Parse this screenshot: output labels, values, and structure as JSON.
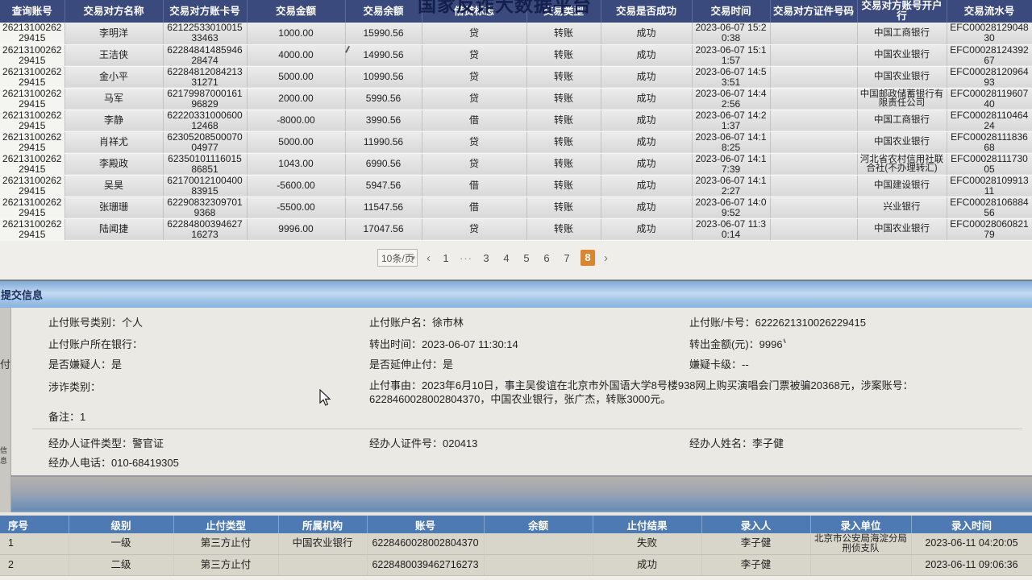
{
  "platform_title": "国家反诈大数据平台",
  "transactions_table": {
    "columns": [
      "查询账号",
      "交易对方名称",
      "交易对方账卡号",
      "交易金额",
      "交易余额",
      "借贷标志",
      "交易类型",
      "交易是否成功",
      "交易时间",
      "交易对方证件号码",
      "交易对方账号开户行",
      "交易流水号"
    ],
    "rows": [
      [
        "2621310026229415",
        "李明洋",
        "6212253301001533463",
        "1000.00",
        "15990.56",
        "贷",
        "转账",
        "成功",
        "2023-06-07 15:20:38",
        "",
        "中国工商银行",
        "EFC0002812904830"
      ],
      [
        "2621310026229415",
        "王洁侠",
        "6228484148594628474",
        "4000.00",
        "14990.56",
        "贷",
        "转账",
        "成功",
        "2023-06-07 15:11:57",
        "",
        "中国农业银行",
        "EFC0002812439267"
      ],
      [
        "2621310026229415",
        "金小平",
        "6228481208421331271",
        "5000.00",
        "10990.56",
        "贷",
        "转账",
        "成功",
        "2023-06-07 14:53:51",
        "",
        "中国农业银行",
        "EFC0002812096493"
      ],
      [
        "2621310026229415",
        "马军",
        "6217998700016196829",
        "2000.00",
        "5990.56",
        "贷",
        "转账",
        "成功",
        "2023-06-07 14:42:56",
        "",
        "中国邮政储蓄银行有限责任公司",
        "EFC0002811960740"
      ],
      [
        "2621310026229415",
        "李静",
        "6222033100060012468",
        "-8000.00",
        "3990.56",
        "借",
        "转账",
        "成功",
        "2023-06-07 14:21:37",
        "",
        "中国工商银行",
        "EFC0002811046424"
      ],
      [
        "2621310026229415",
        "肖祥尤",
        "6230520850007004977",
        "5000.00",
        "11990.56",
        "贷",
        "转账",
        "成功",
        "2023-06-07 14:18:25",
        "",
        "中国农业银行",
        "EFC0002811183668"
      ],
      [
        "2621310026229415",
        "李殿政",
        "6235010111601586851",
        "1043.00",
        "6990.56",
        "贷",
        "转账",
        "成功",
        "2023-06-07 14:17:39",
        "",
        "河北省农村信用社联合社(不办理转汇)",
        "EFC0002811173005"
      ],
      [
        "2621310026229415",
        "吴昊",
        "6217001210040083915",
        "-5600.00",
        "5947.56",
        "借",
        "转账",
        "成功",
        "2023-06-07 14:12:27",
        "",
        "中国建设银行",
        "EFC0002810991311"
      ],
      [
        "2621310026229415",
        "张珊珊",
        "622908323097019368",
        "-5500.00",
        "11547.56",
        "借",
        "转账",
        "成功",
        "2023-06-07 14:09:52",
        "",
        "兴业银行",
        "EFC0002810688456"
      ],
      [
        "2621310026229415",
        "陆闻捷",
        "6228480039462716273",
        "9996.00",
        "17047.56",
        "贷",
        "转账",
        "成功",
        "2023-06-07 11:30:14",
        "",
        "中国农业银行",
        "EFC0002806082179"
      ]
    ]
  },
  "pagination": {
    "page_size": "10条/页",
    "prev": "‹",
    "next": "›",
    "pages": [
      "1",
      "···",
      "3",
      "4",
      "5",
      "6",
      "7",
      "8"
    ],
    "current": "8"
  },
  "submit_info": {
    "header": "提交信息",
    "rows": [
      [
        "止付账号类别：个人",
        "止付账户名：徐市林",
        "止付账/卡号：6222621310026229415"
      ],
      [
        "止付账户所在银行：",
        "转出时间：2023-06-07 11:30:14",
        "转出金额(元)：9996"
      ],
      [
        "是否嫌疑人：是",
        "是否延伸止付：是",
        "嫌疑卡级：--"
      ],
      [
        "涉诈类别：",
        "止付事由：2023年6月10日，事主吴俊谊在北京市外国语大学8号楼938网上购买演唱会门票被骗20368元，涉案账号：6228460028002804370，中国农业银行，张广杰，转账3000元。",
        ""
      ],
      [
        "备注：1",
        "",
        ""
      ]
    ],
    "operator_rows": [
      [
        "经办人证件类型：警官证",
        "经办人证件号：020413",
        "经办人姓名：李子健"
      ],
      [
        "经办人电话：010-68419305",
        "",
        ""
      ]
    ]
  },
  "sidebar_clipped_labels": [
    "付",
    "信息"
  ],
  "stop_payment_table": {
    "columns": [
      "序号",
      "级别",
      "止付类型",
      "所属机构",
      "账号",
      "余额",
      "止付结果",
      "录入人",
      "录入单位",
      "录入时间"
    ],
    "rows": [
      [
        "1",
        "一级",
        "第三方止付",
        "中国农业银行",
        "6228460028002804370",
        "",
        "失败",
        "李子健",
        "北京市公安局海淀分局刑侦支队",
        "2023-06-11 04:20:05"
      ],
      [
        "2",
        "二级",
        "第三方止付",
        "",
        "6228480039462716273",
        "",
        "成功",
        "李子健",
        "",
        "2023-06-11 09:06:36"
      ]
    ]
  },
  "colors": {
    "header_navy": "#3b4a7c",
    "accent_orange": "#d9862f",
    "bottom_header_blue": "#4d7ab2"
  }
}
